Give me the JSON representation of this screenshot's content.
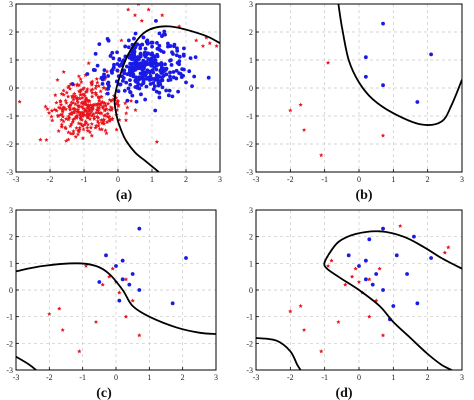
{
  "colors": {
    "class_a": "#e8141c",
    "class_b": "#1a1ae6",
    "boundary": "#000000"
  },
  "chart_data": [
    {
      "type": "scatter",
      "caption": "(a)",
      "xlim": [
        -3,
        3
      ],
      "ylim": [
        -3,
        3
      ],
      "xticks": [
        -3,
        -2,
        -1,
        0,
        1,
        2,
        3
      ],
      "yticks": [
        3,
        2,
        1,
        0,
        -1,
        -2,
        -3
      ],
      "grid": true,
      "series": [
        {
          "marker": "star",
          "color": "#e8141c",
          "generated_cloud": {
            "count": 330,
            "center": [
              -0.9,
              -0.7
            ],
            "spread": [
              0.55,
              0.5
            ],
            "seed": 11
          },
          "points": [
            [
              0.3,
              2.8
            ],
            [
              0.5,
              2.6
            ],
            [
              0.7,
              2.4
            ],
            [
              0.9,
              2.8
            ],
            [
              0.6,
              3.0
            ],
            [
              2.3,
              1.7
            ],
            [
              2.5,
              1.5
            ],
            [
              2.7,
              1.6
            ],
            [
              2.9,
              1.5
            ],
            [
              2.6,
              1.8
            ],
            [
              1.3,
              2.6
            ],
            [
              1.8,
              2.2
            ],
            [
              0.1,
              1.7
            ],
            [
              -0.2,
              1.2
            ],
            [
              0.0,
              0.6
            ],
            [
              -0.4,
              0.3
            ]
          ]
        },
        {
          "marker": "dot",
          "color": "#1a1ae6",
          "generated_cloud": {
            "count": 330,
            "center": [
              0.8,
              0.8
            ],
            "spread": [
              0.6,
              0.55
            ],
            "seed": 23
          },
          "points": [
            [
              -0.6,
              0.8
            ],
            [
              -0.9,
              0.5
            ],
            [
              -0.3,
              -0.2
            ],
            [
              0.2,
              -0.1
            ],
            [
              1.6,
              -0.3
            ],
            [
              2.0,
              0.2
            ]
          ]
        }
      ],
      "boundary": [
        [
          0.0,
          -1.2
        ],
        [
          -0.1,
          -0.5
        ],
        [
          0.0,
          0.2
        ],
        [
          0.3,
          1.2
        ],
        [
          0.8,
          2.0
        ],
        [
          1.5,
          2.2
        ],
        [
          2.5,
          1.9
        ],
        [
          3.0,
          1.6
        ]
      ],
      "boundary2": [
        [
          0.0,
          -1.2
        ],
        [
          0.2,
          -1.8
        ],
        [
          0.5,
          -2.3
        ],
        [
          0.8,
          -2.6
        ],
        [
          1.1,
          -2.9
        ],
        [
          1.2,
          -3.0
        ]
      ]
    },
    {
      "type": "scatter",
      "caption": "(b)",
      "xlim": [
        -3,
        3
      ],
      "ylim": [
        -3,
        3
      ],
      "xticks": [
        -3,
        -2,
        -1,
        0,
        1,
        2,
        3
      ],
      "yticks": [
        3,
        2,
        1,
        0,
        -1,
        -2,
        -3
      ],
      "grid": true,
      "series": [
        {
          "marker": "star",
          "color": "#e8141c",
          "points": [
            [
              -0.9,
              0.9
            ],
            [
              -2.0,
              -0.8
            ],
            [
              -1.7,
              -0.6
            ],
            [
              -1.6,
              -1.5
            ],
            [
              -1.1,
              -2.4
            ],
            [
              0.7,
              -1.7
            ]
          ]
        },
        {
          "marker": "dot",
          "color": "#1a1ae6",
          "points": [
            [
              0.7,
              2.3
            ],
            [
              0.2,
              1.1
            ],
            [
              2.1,
              1.2
            ],
            [
              0.2,
              0.4
            ],
            [
              0.7,
              0.1
            ],
            [
              1.7,
              -0.5
            ]
          ]
        }
      ],
      "boundary": [
        [
          -0.6,
          3.0
        ],
        [
          -0.5,
          2.2
        ],
        [
          -0.3,
          1.0
        ],
        [
          0.0,
          0.2
        ],
        [
          0.4,
          -0.4
        ],
        [
          1.0,
          -0.9
        ],
        [
          1.8,
          -1.3
        ],
        [
          2.4,
          -1.2
        ],
        [
          2.7,
          -0.6
        ],
        [
          3.0,
          0.3
        ]
      ]
    },
    {
      "type": "scatter",
      "caption": "(c)",
      "xlim": [
        -3,
        3
      ],
      "ylim": [
        -3,
        3
      ],
      "xticks": [
        -3,
        -2,
        -1,
        0,
        1,
        2,
        3
      ],
      "yticks": [
        3,
        2,
        1,
        0,
        -1,
        -2,
        -3
      ],
      "grid": true,
      "series": [
        {
          "marker": "star",
          "color": "#e8141c",
          "points": [
            [
              -0.9,
              0.9
            ],
            [
              -2.0,
              -0.9
            ],
            [
              -1.7,
              -0.7
            ],
            [
              -1.6,
              -1.5
            ],
            [
              -1.1,
              -2.3
            ],
            [
              0.7,
              -1.7
            ],
            [
              -0.4,
              0.2
            ],
            [
              -0.2,
              0.5
            ],
            [
              0.0,
              0.3
            ],
            [
              0.3,
              0.4
            ],
            [
              0.1,
              -0.1
            ],
            [
              -0.6,
              -1.2
            ],
            [
              0.3,
              -1.0
            ],
            [
              0.5,
              -0.4
            ],
            [
              -0.1,
              0.8
            ],
            [
              0.2,
              1.1
            ]
          ]
        },
        {
          "marker": "dot",
          "color": "#1a1ae6",
          "points": [
            [
              0.7,
              2.3
            ],
            [
              0.2,
              1.1
            ],
            [
              2.1,
              1.2
            ],
            [
              0.2,
              0.4
            ],
            [
              0.7,
              0.0
            ],
            [
              1.7,
              -0.5
            ],
            [
              -0.3,
              1.3
            ],
            [
              0.0,
              0.9
            ],
            [
              0.5,
              0.6
            ],
            [
              0.4,
              0.2
            ],
            [
              -0.5,
              0.3
            ],
            [
              0.1,
              -0.4
            ]
          ]
        }
      ],
      "boundary": [
        [
          -3.0,
          0.7
        ],
        [
          -2.2,
          0.9
        ],
        [
          -1.2,
          1.0
        ],
        [
          -0.6,
          0.9
        ],
        [
          -0.2,
          0.6
        ],
        [
          0.2,
          0.0
        ],
        [
          0.5,
          -0.6
        ],
        [
          1.0,
          -1.0
        ],
        [
          1.8,
          -1.4
        ],
        [
          2.5,
          -1.6
        ],
        [
          3.0,
          -1.65
        ]
      ],
      "boundary2": [
        [
          -3.0,
          -2.5
        ],
        [
          -2.6,
          -2.8
        ],
        [
          -2.4,
          -3.0
        ]
      ]
    },
    {
      "type": "scatter",
      "caption": "(d)",
      "xlim": [
        -3,
        3
      ],
      "ylim": [
        -3,
        3
      ],
      "xticks": [
        -3,
        -2,
        -1,
        0,
        1,
        2,
        3
      ],
      "yticks": [
        3,
        2,
        1,
        0,
        -1,
        -2,
        -3
      ],
      "grid": true,
      "series": [
        {
          "marker": "star",
          "color": "#e8141c",
          "points": [
            [
              1.2,
              2.4
            ],
            [
              0.7,
              2.3
            ],
            [
              2.6,
              1.6
            ],
            [
              2.5,
              1.4
            ],
            [
              -0.9,
              0.9
            ],
            [
              -2.0,
              -0.8
            ],
            [
              -1.7,
              -0.6
            ],
            [
              -1.6,
              -1.5
            ],
            [
              -1.1,
              -2.3
            ],
            [
              0.7,
              -1.7
            ],
            [
              -0.4,
              0.2
            ],
            [
              -0.2,
              0.5
            ],
            [
              0.0,
              0.3
            ],
            [
              0.3,
              0.4
            ],
            [
              0.1,
              -0.1
            ],
            [
              -0.6,
              -1.2
            ],
            [
              0.3,
              -1.0
            ],
            [
              0.5,
              -0.4
            ],
            [
              -0.1,
              0.8
            ],
            [
              0.2,
              1.1
            ],
            [
              -0.8,
              1.1
            ],
            [
              0.6,
              0.8
            ]
          ]
        },
        {
          "marker": "dot",
          "color": "#1a1ae6",
          "points": [
            [
              0.7,
              2.3
            ],
            [
              0.2,
              1.1
            ],
            [
              2.1,
              1.2
            ],
            [
              0.2,
              0.4
            ],
            [
              0.7,
              0.0
            ],
            [
              1.7,
              -0.5
            ],
            [
              -0.3,
              1.3
            ],
            [
              0.0,
              0.9
            ],
            [
              0.5,
              0.6
            ],
            [
              0.4,
              0.2
            ],
            [
              1.4,
              0.6
            ],
            [
              1.1,
              1.3
            ],
            [
              1.6,
              2.0
            ],
            [
              1.0,
              -0.6
            ],
            [
              0.9,
              -1.1
            ],
            [
              0.3,
              1.9
            ]
          ]
        }
      ],
      "boundary": [
        [
          -0.9,
          1.3
        ],
        [
          -0.6,
          1.8
        ],
        [
          -0.1,
          2.1
        ],
        [
          0.6,
          2.2
        ],
        [
          1.3,
          2.0
        ],
        [
          1.9,
          1.6
        ],
        [
          2.4,
          1.2
        ],
        [
          3.0,
          0.8
        ]
      ],
      "boundary_b": [
        [
          -0.9,
          1.3
        ],
        [
          -1.0,
          0.9
        ],
        [
          -0.6,
          0.5
        ],
        [
          0.0,
          0.0
        ],
        [
          0.6,
          -0.6
        ],
        [
          1.0,
          -1.2
        ],
        [
          1.5,
          -1.8
        ],
        [
          2.0,
          -2.4
        ],
        [
          2.4,
          -2.8
        ],
        [
          2.7,
          -3.0
        ]
      ],
      "boundary2": [
        [
          -3.0,
          -1.8
        ],
        [
          -2.4,
          -1.9
        ],
        [
          -2.0,
          -2.3
        ],
        [
          -1.8,
          -2.8
        ],
        [
          -1.7,
          -3.0
        ]
      ]
    }
  ]
}
